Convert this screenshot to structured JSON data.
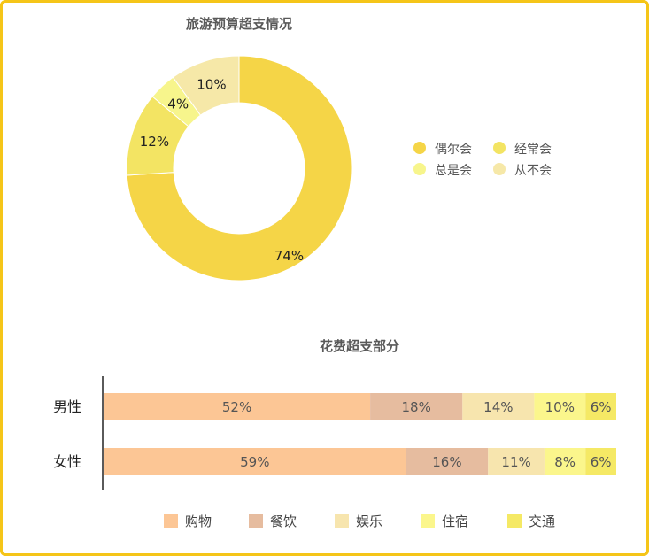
{
  "chart_data": [
    {
      "type": "pie",
      "title": "旅游预算超支情况",
      "categories": [
        "偶尔会",
        "经常会",
        "总是会",
        "从不会"
      ],
      "values": [
        74,
        12,
        4,
        10
      ],
      "value_labels": [
        "74%",
        "12%",
        "4%",
        "10%"
      ],
      "colors": [
        "#f5d547",
        "#f3e463",
        "#f7f58c",
        "#f6e8a8"
      ],
      "donut": true,
      "legend": "right"
    },
    {
      "type": "bar",
      "orientation": "horizontal",
      "stacked": true,
      "title": "花费超支部分",
      "categories": [
        "男性",
        "女性"
      ],
      "series": [
        {
          "name": "购物",
          "values": [
            52,
            59
          ],
          "labels": [
            "52%",
            "59%"
          ],
          "color": "#fcc695"
        },
        {
          "name": "餐饮",
          "values": [
            18,
            16
          ],
          "labels": [
            "18%",
            "16%"
          ],
          "color": "#e6bc9f"
        },
        {
          "name": "娱乐",
          "values": [
            14,
            11
          ],
          "labels": [
            "14%",
            "11%"
          ],
          "color": "#f7e5ae"
        },
        {
          "name": "住宿",
          "values": [
            10,
            8
          ],
          "labels": [
            "10%",
            "8%"
          ],
          "color": "#fbf68c"
        },
        {
          "name": "交通",
          "values": [
            6,
            6
          ],
          "labels": [
            "6%",
            "6%"
          ],
          "color": "#f5e965"
        }
      ],
      "xlim": [
        0,
        100
      ],
      "legend": "bottom"
    }
  ]
}
